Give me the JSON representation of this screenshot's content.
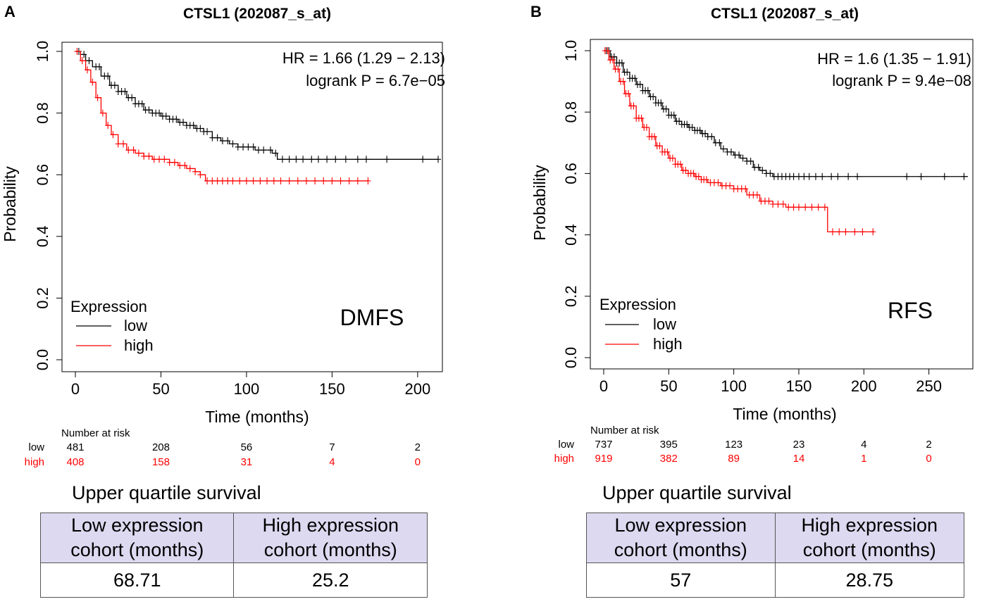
{
  "panels": [
    {
      "letter": "A",
      "chart_data": {
        "type": "line",
        "title": "CTSL1 (202087_s_at)",
        "xlabel": "Time (months)",
        "ylabel": "Probability",
        "xlim": [
          0,
          212
        ],
        "ylim": [
          0,
          1
        ],
        "x_ticks": [
          0,
          50,
          100,
          150,
          200
        ],
        "y_ticks": [
          0.0,
          0.2,
          0.4,
          0.6,
          0.8,
          1.0
        ],
        "x_tick_labels": [
          "0",
          "50",
          "100",
          "150",
          "200"
        ],
        "y_tick_labels": [
          "0.0",
          "0.2",
          "0.4",
          "0.6",
          "0.8",
          "1.0"
        ],
        "annotation_lines": [
          "HR = 1.66 (1.29 − 2.13)",
          "logrank P = 6.7e−05"
        ],
        "endpoint_label": "DMFS",
        "legend_title": "Expression",
        "legend_placement": "bottom-left",
        "series": [
          {
            "name": "low",
            "color": "#000000",
            "x": [
              0,
              3,
              6,
              10,
              15,
              20,
              25,
              30,
              35,
              40,
              45,
              50,
              55,
              60,
              65,
              70,
              75,
              80,
              85,
              90,
              95,
              100,
              105,
              110,
              115,
              118,
              125,
              150,
              212
            ],
            "y": [
              1.0,
              0.99,
              0.97,
              0.95,
              0.92,
              0.89,
              0.87,
              0.85,
              0.83,
              0.81,
              0.8,
              0.79,
              0.78,
              0.77,
              0.76,
              0.75,
              0.74,
              0.72,
              0.71,
              0.7,
              0.69,
              0.69,
              0.68,
              0.68,
              0.67,
              0.65,
              0.65,
              0.65,
              0.65
            ],
            "censor_x": [
              2,
              5,
              8,
              12,
              14,
              17,
              19,
              21,
              23,
              25,
              27,
              29,
              31,
              33,
              35,
              37,
              39,
              41,
              43,
              45,
              47,
              49,
              51,
              53,
              55,
              57,
              59,
              61,
              63,
              65,
              67,
              69,
              71,
              73,
              75,
              77,
              80,
              83,
              86,
              89,
              92,
              95,
              98,
              101,
              104,
              107,
              110,
              114,
              117,
              121,
              125,
              129,
              133,
              138,
              142,
              147,
              152,
              158,
              165,
              170,
              182,
              203,
              212
            ]
          },
          {
            "name": "high",
            "color": "#ff0000",
            "x": [
              0,
              3,
              6,
              9,
              12,
              15,
              18,
              21,
              25,
              30,
              35,
              40,
              45,
              50,
              55,
              60,
              65,
              70,
              73,
              76,
              80,
              100,
              171
            ],
            "y": [
              1.0,
              0.97,
              0.94,
              0.9,
              0.85,
              0.8,
              0.76,
              0.73,
              0.7,
              0.68,
              0.67,
              0.66,
              0.65,
              0.65,
              0.64,
              0.63,
              0.62,
              0.61,
              0.6,
              0.58,
              0.58,
              0.58,
              0.58
            ],
            "censor_x": [
              1,
              4,
              7,
              10,
              13,
              16,
              19,
              22,
              25,
              28,
              31,
              34,
              37,
              40,
              43,
              46,
              49,
              52,
              55,
              58,
              61,
              64,
              67,
              70,
              73,
              77,
              80,
              83,
              86,
              89,
              92,
              96,
              100,
              104,
              108,
              112,
              116,
              120,
              125,
              130,
              135,
              140,
              145,
              150,
              155,
              160,
              165,
              171
            ]
          }
        ],
        "risk_table": {
          "title": "Number at risk",
          "rows": [
            {
              "label": "low",
              "color": "#000000",
              "values": [
                "481",
                "208",
                "56",
                "7",
                "2"
              ]
            },
            {
              "label": "high",
              "color": "#ff0000",
              "values": [
                "408",
                "158",
                "31",
                "4",
                "0"
              ]
            }
          ]
        }
      },
      "quartile": {
        "title": "Upper quartile survival",
        "headers": [
          [
            "Low expression",
            "cohort (months)"
          ],
          [
            "High expression",
            "cohort (months)"
          ]
        ],
        "values": [
          "68.71",
          "25.2"
        ]
      }
    },
    {
      "letter": "B",
      "chart_data": {
        "type": "line",
        "title": "CTSL1 (202087_s_at)",
        "xlabel": "Time (months)",
        "ylabel": "Probability",
        "xlim": [
          0,
          280
        ],
        "ylim": [
          0,
          1
        ],
        "x_ticks": [
          0,
          50,
          100,
          150,
          200,
          250
        ],
        "y_ticks": [
          0.0,
          0.2,
          0.4,
          0.6,
          0.8,
          1.0
        ],
        "x_tick_labels": [
          "0",
          "50",
          "100",
          "150",
          "200",
          "250"
        ],
        "y_tick_labels": [
          "0.0",
          "0.2",
          "0.4",
          "0.6",
          "0.8",
          "1.0"
        ],
        "annotation_lines": [
          "HR = 1.6 (1.35 − 1.91)",
          "logrank P = 9.4e−08"
        ],
        "endpoint_label": "RFS",
        "legend_title": "Expression",
        "legend_placement": "bottom-left",
        "series": [
          {
            "name": "low",
            "color": "#000000",
            "x": [
              0,
              5,
              10,
              15,
              20,
              25,
              30,
              35,
              40,
              45,
              50,
              55,
              60,
              65,
              70,
              75,
              80,
              85,
              90,
              95,
              100,
              105,
              110,
              115,
              120,
              125,
              130,
              135,
              150,
              280
            ],
            "y": [
              1.0,
              0.98,
              0.96,
              0.93,
              0.91,
              0.89,
              0.87,
              0.85,
              0.83,
              0.81,
              0.79,
              0.77,
              0.76,
              0.75,
              0.74,
              0.73,
              0.72,
              0.7,
              0.68,
              0.67,
              0.66,
              0.65,
              0.64,
              0.62,
              0.61,
              0.6,
              0.59,
              0.59,
              0.59,
              0.59
            ],
            "censor_x": [
              2,
              4,
              6,
              8,
              10,
              12,
              14,
              16,
              18,
              20,
              22,
              24,
              26,
              28,
              30,
              32,
              34,
              36,
              38,
              40,
              42,
              44,
              46,
              48,
              50,
              52,
              54,
              56,
              58,
              60,
              62,
              64,
              66,
              68,
              70,
              72,
              74,
              76,
              78,
              80,
              83,
              86,
              89,
              92,
              95,
              98,
              101,
              104,
              107,
              110,
              113,
              116,
              119,
              122,
              125,
              128,
              131,
              134,
              137,
              140,
              143,
              146,
              150,
              154,
              158,
              163,
              168,
              175,
              180,
              188,
              195,
              233,
              244,
              262,
              277
            ]
          },
          {
            "name": "high",
            "color": "#ff0000",
            "x": [
              0,
              4,
              8,
              12,
              16,
              20,
              25,
              30,
              35,
              40,
              45,
              50,
              55,
              60,
              65,
              70,
              75,
              80,
              90,
              100,
              110,
              120,
              130,
              140,
              150,
              160,
              172,
              172.1,
              208
            ],
            "y": [
              1.0,
              0.97,
              0.94,
              0.9,
              0.86,
              0.82,
              0.78,
              0.75,
              0.72,
              0.69,
              0.67,
              0.65,
              0.63,
              0.61,
              0.6,
              0.59,
              0.58,
              0.57,
              0.56,
              0.55,
              0.53,
              0.51,
              0.5,
              0.49,
              0.49,
              0.49,
              0.49,
              0.41,
              0.41
            ],
            "censor_x": [
              1,
              3,
              5,
              7,
              9,
              11,
              13,
              15,
              17,
              19,
              21,
              23,
              25,
              27,
              29,
              31,
              33,
              35,
              37,
              39,
              41,
              43,
              45,
              47,
              49,
              51,
              53,
              55,
              57,
              59,
              61,
              63,
              65,
              67,
              69,
              71,
              73,
              75,
              77,
              79,
              82,
              85,
              88,
              91,
              94,
              97,
              100,
              103,
              106,
              109,
              112,
              115,
              118,
              121,
              124,
              127,
              130,
              134,
              138,
              142,
              146,
              150,
              155,
              160,
              165,
              170,
              176,
              181,
              186,
              193,
              199,
              207
            ]
          }
        ],
        "risk_table": {
          "title": "Number at risk",
          "rows": [
            {
              "label": "low",
              "color": "#000000",
              "values": [
                "737",
                "395",
                "123",
                "23",
                "4",
                "2"
              ]
            },
            {
              "label": "high",
              "color": "#ff0000",
              "values": [
                "919",
                "382",
                "89",
                "14",
                "1",
                "0"
              ]
            }
          ]
        }
      },
      "quartile": {
        "title": "Upper quartile survival",
        "headers": [
          [
            "Low expression",
            "cohort (months)"
          ],
          [
            "High expression",
            "cohort (months)"
          ]
        ],
        "values": [
          "57",
          "28.75"
        ]
      }
    }
  ]
}
